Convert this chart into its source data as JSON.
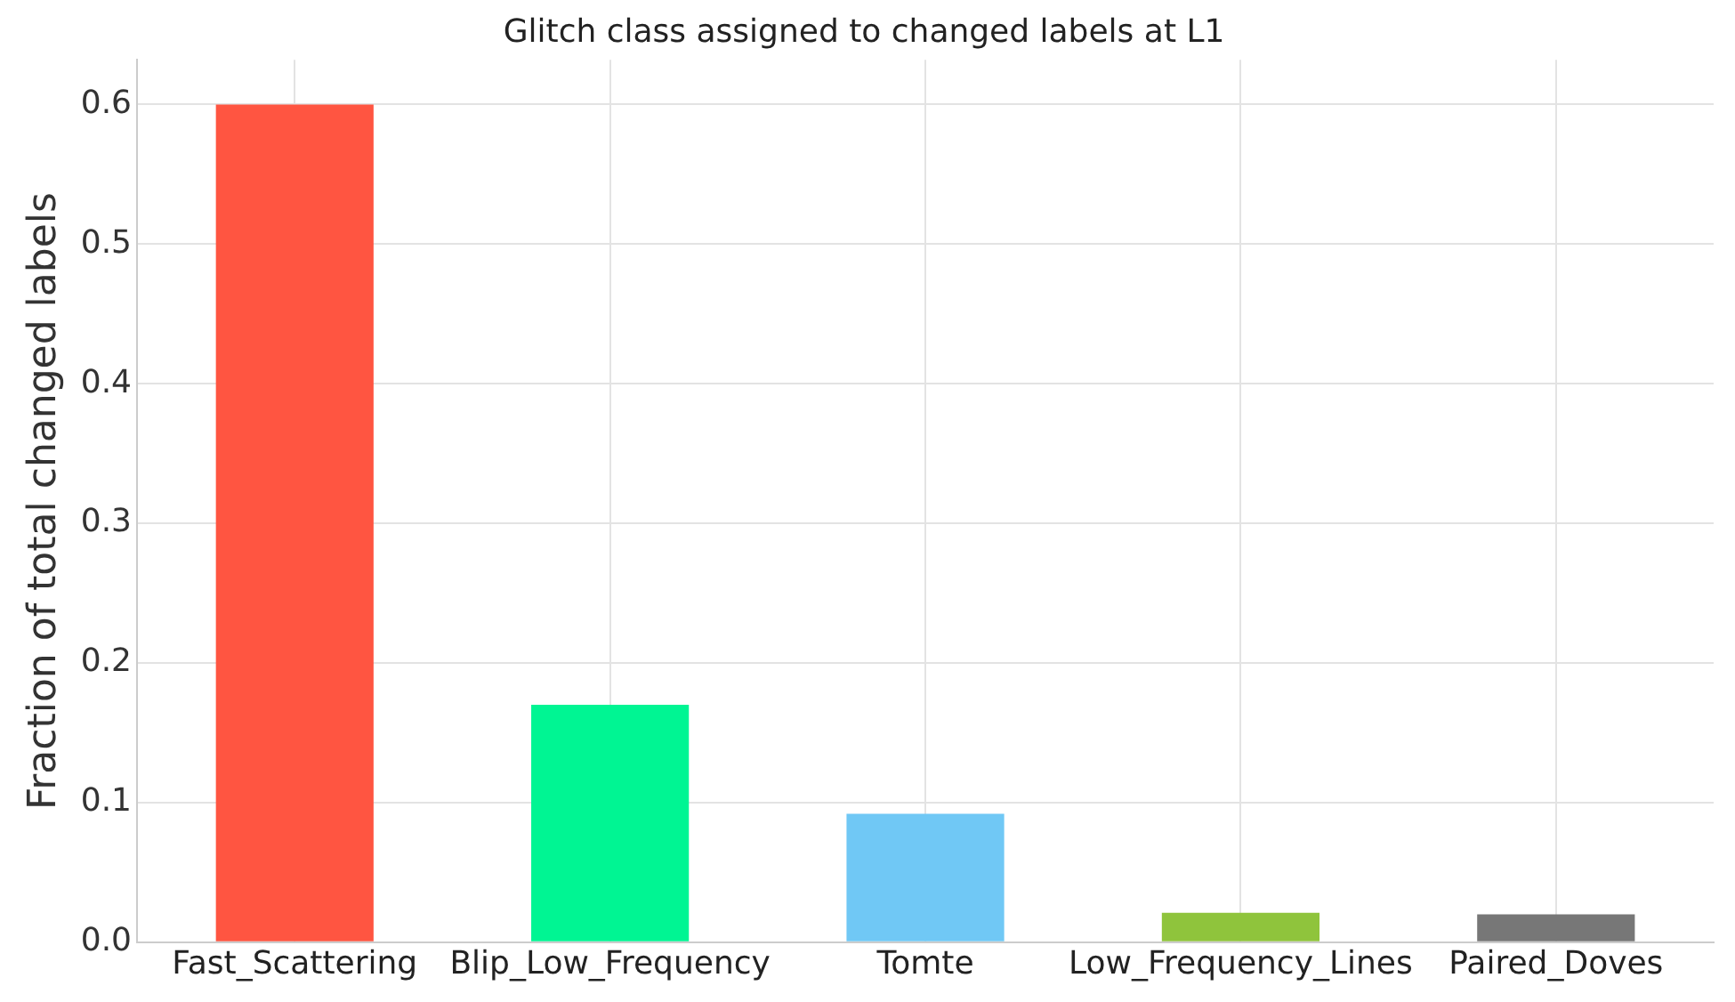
{
  "chart_data": {
    "type": "bar",
    "title": "Glitch class assigned to changed labels at L1",
    "ylabel": "Fraction of total changed labels",
    "categories": [
      "Fast_Scattering",
      "Blip_Low_Frequency",
      "Tomte",
      "Low_Frequency_Lines",
      "Paired_Doves"
    ],
    "values": [
      0.6,
      0.17,
      0.092,
      0.021,
      0.02
    ],
    "colors": [
      "#ff5541",
      "#00f593",
      "#70c8f5",
      "#8fc43c",
      "#777777"
    ],
    "ylim": [
      0,
      0.632
    ],
    "yticks": [
      {
        "value": 0,
        "label": "0.0"
      },
      0.1,
      0.2,
      0.3,
      0.4,
      0.5,
      0.6
    ],
    "grid": true
  }
}
